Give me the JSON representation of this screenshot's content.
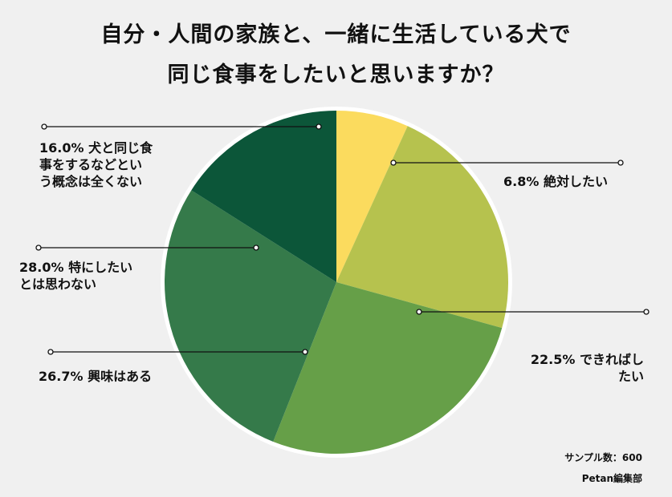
{
  "title": {
    "line1": "自分・人間の家族と、一緒に生活している犬で",
    "line2": "同じ食事をしたいと思いますか？"
  },
  "chart_data": {
    "type": "pie",
    "title": "自分・人間の家族と、一緒に生活している犬で同じ食事をしたいと思いますか？",
    "unit": "%",
    "slices": [
      {
        "name": "絶対したい",
        "value": 6.8,
        "color": "#fbdb5e",
        "label_lines": [
          "6.8% 絶対したい"
        ]
      },
      {
        "name": "できればしたい",
        "value": 22.5,
        "color": "#b6c24e",
        "label_lines": [
          "22.5% できればし",
          "たい"
        ]
      },
      {
        "name": "興味はある",
        "value": 26.7,
        "color": "#669f48",
        "label_lines": [
          "26.7% 興味はある"
        ]
      },
      {
        "name": "特にしたいとは思わない",
        "value": 28.0,
        "color": "#357a4a",
        "label_lines": [
          "28.0% 特にしたい",
          "とは思わない"
        ]
      },
      {
        "name": "犬と同じ食事をするなどという概念は全くない",
        "value": 16.0,
        "color": "#0c5639",
        "label_lines": [
          "16.0% 犬と同じ食",
          "事をするなどとい",
          "う概念は全くない"
        ]
      }
    ]
  },
  "sample": "サンプル数：600",
  "source": "Petan編集部"
}
